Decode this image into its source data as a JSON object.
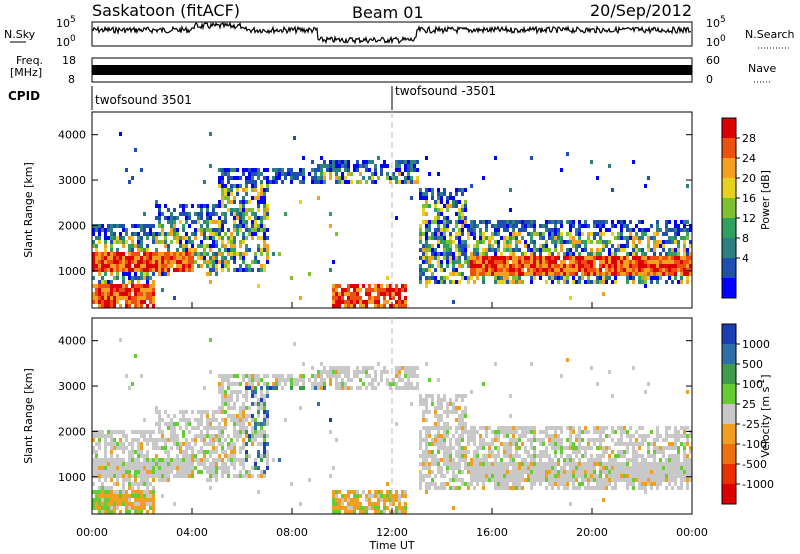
{
  "header": {
    "station": "Saskatoon (fitACF)",
    "beam": "Beam 01",
    "date": "20/Sep/2012"
  },
  "noise_panel": {
    "left_label": "N.Sky",
    "right_label": "N.Search",
    "left_ticks": [
      "10^5",
      "10^0"
    ],
    "right_ticks": [
      "10^5",
      "10^0"
    ]
  },
  "freq_panel": {
    "left_label_1": "Freq.",
    "left_label_2": "[MHz]",
    "left_ticks": [
      "18",
      "8"
    ],
    "right_label": "Nave",
    "right_ticks": [
      "60",
      "0"
    ]
  },
  "cpid_panel": {
    "label": "CPID",
    "segments": [
      {
        "start_hour": 0,
        "text": "twofsound 3501"
      },
      {
        "start_hour": 12,
        "text": "twofsound -3501"
      }
    ]
  },
  "chart_data": [
    {
      "type": "heatmap",
      "name": "Power",
      "ylabel": "Slant Range [km]",
      "xlabel": "Time UT",
      "xlim_hours": [
        0,
        24
      ],
      "ylim": [
        180,
        4500
      ],
      "yticks": [
        "1000",
        "2000",
        "3000",
        "4000"
      ],
      "xticks": [
        "00:00",
        "04:00",
        "08:00",
        "12:00",
        "16:00",
        "20:00",
        "00:00"
      ],
      "colorbar": {
        "label": "Power [dB]",
        "ticks": [
          "4",
          "8",
          "12",
          "16",
          "20",
          "24",
          "28"
        ],
        "colors": [
          "#0000ff",
          "#1f4fb0",
          "#2e7f7f",
          "#2fa060",
          "#7fc030",
          "#e8d020",
          "#f4a020",
          "#ee5010",
          "#dd0000"
        ]
      }
    },
    {
      "type": "heatmap",
      "name": "Velocity",
      "ylabel": "Slant Range [km]",
      "xlabel": "Time UT",
      "xlim_hours": [
        0,
        24
      ],
      "ylim": [
        180,
        4500
      ],
      "yticks": [
        "1000",
        "2000",
        "3000",
        "4000"
      ],
      "xticks": [
        "00:00",
        "04:00",
        "08:00",
        "12:00",
        "16:00",
        "20:00",
        "00:00"
      ],
      "colorbar": {
        "label": "Velocity [m s^-1]",
        "ticks": [
          "1000",
          "500",
          "100",
          "25",
          "-25",
          "-100",
          "-500",
          "-1000"
        ],
        "colors": [
          "#1a3fb5",
          "#2f6fa8",
          "#3f9a50",
          "#66cc33",
          "#c8c8c8",
          "#f0a020",
          "#f07010",
          "#e83000",
          "#dd0000"
        ]
      }
    }
  ],
  "x_axis": {
    "label": "Time UT",
    "ticks": [
      "00:00",
      "04:00",
      "08:00",
      "12:00",
      "16:00",
      "20:00",
      "00:00"
    ]
  }
}
